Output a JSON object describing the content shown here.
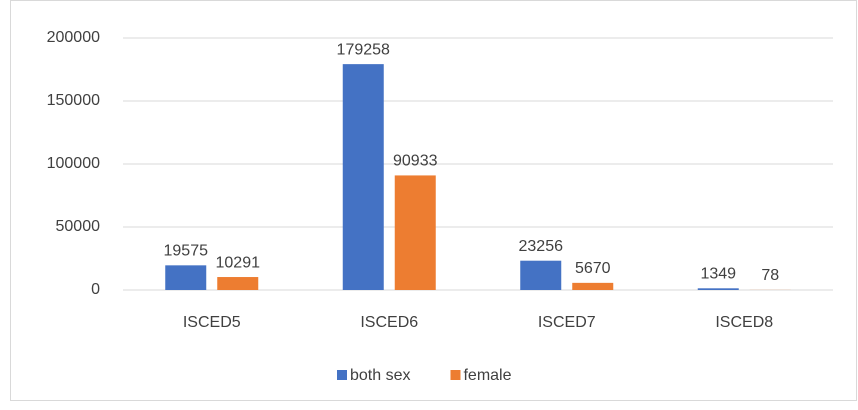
{
  "chart_data": {
    "type": "bar",
    "categories": [
      "ISCED5",
      "ISCED6",
      "ISCED7",
      "ISCED8"
    ],
    "series": [
      {
        "name": "both sex",
        "color": "#4472c4",
        "values": [
          19575,
          179258,
          23256,
          1349
        ]
      },
      {
        "name": "female",
        "color": "#ed7d31",
        "values": [
          10291,
          90933,
          5670,
          78
        ]
      }
    ],
    "ylim": [
      0,
      200000
    ],
    "yticks": [
      0,
      50000,
      100000,
      150000,
      200000
    ],
    "grid": true,
    "legend": "bottom"
  }
}
